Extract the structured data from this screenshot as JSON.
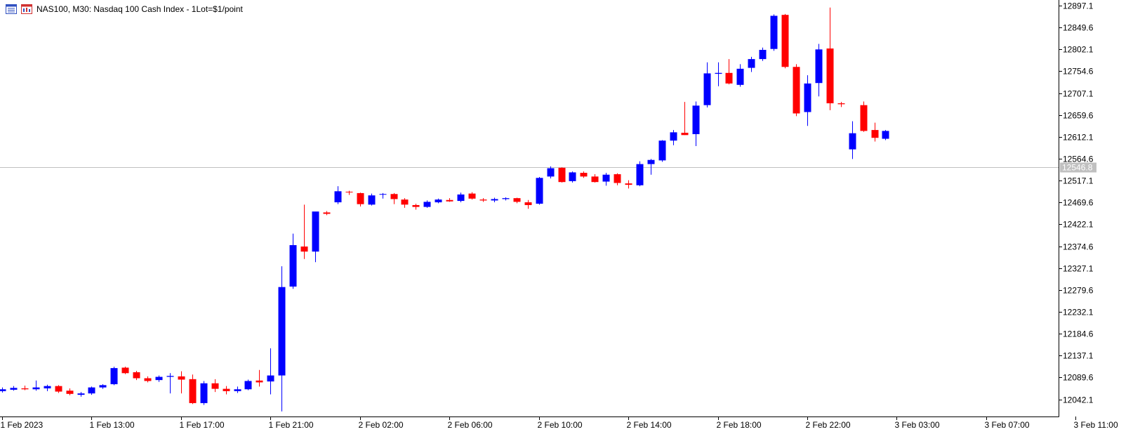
{
  "header": {
    "title": "NAS100, M30:  Nasdaq 100 Cash Index - 1Lot=$1/point",
    "icons": [
      "chart-list-icon",
      "chart-window-icon"
    ]
  },
  "colors": {
    "bull": "#0000ff",
    "bear": "#ff0000",
    "axis": "#000000",
    "price_line": "#c0c0c0",
    "price_tag_bg": "#c0c0c0",
    "background": "#ffffff"
  },
  "chart_data": {
    "type": "candlestick",
    "title": "NAS100, M30:  Nasdaq 100 Cash Index - 1Lot=$1/point",
    "ylim": [
      12004.9,
      12909.3
    ],
    "y_ticks": [
      "12897.1",
      "12849.6",
      "12802.1",
      "12754.6",
      "12707.1",
      "12659.6",
      "12612.1",
      "12564.6",
      "12517.1",
      "12469.6",
      "12422.1",
      "12374.6",
      "12327.1",
      "12279.6",
      "12232.1",
      "12184.6",
      "12137.1",
      "12089.6",
      "12042.1"
    ],
    "x_ticks": [
      "1 Feb 2023",
      "1 Feb 13:00",
      "1 Feb 17:00",
      "1 Feb 21:00",
      "2 Feb 02:00",
      "2 Feb 06:00",
      "2 Feb 10:00",
      "2 Feb 14:00",
      "2 Feb 18:00",
      "2 Feb 22:00",
      "3 Feb 03:00",
      "3 Feb 07:00",
      "3 Feb 11:00"
    ],
    "x_tick_index": [
      0,
      8,
      16,
      24,
      32,
      40,
      48,
      56,
      64,
      72,
      80,
      88,
      96
    ],
    "current_price": 12546.8,
    "current_price_label": "12546.8",
    "grid": false,
    "candles": [
      [
        12060,
        12068,
        12057,
        12064
      ],
      [
        12063,
        12071,
        12061,
        12067
      ],
      [
        12066,
        12072,
        12062,
        12064
      ],
      [
        12064,
        12083,
        12061,
        12068
      ],
      [
        12066,
        12074,
        12060,
        12071
      ],
      [
        12071,
        12073,
        12056,
        12059
      ],
      [
        12061,
        12066,
        12051,
        12054
      ],
      [
        12052,
        12058,
        12048,
        12055
      ],
      [
        12055,
        12070,
        12052,
        12068
      ],
      [
        12068,
        12075,
        12065,
        12073
      ],
      [
        12075,
        12113,
        12073,
        12110
      ],
      [
        12111,
        12113,
        12097,
        12099
      ],
      [
        12101,
        12104,
        12084,
        12088
      ],
      [
        12088,
        12092,
        12079,
        12082
      ],
      [
        12084,
        12094,
        12080,
        12091
      ],
      [
        12091,
        12099,
        12055,
        12093
      ],
      [
        12092,
        12103,
        12055,
        12085
      ],
      [
        12086,
        12096,
        12032,
        12034
      ],
      [
        12034,
        12082,
        12030,
        12077
      ],
      [
        12077,
        12086,
        12058,
        12065
      ],
      [
        12065,
        12071,
        12053,
        12060
      ],
      [
        12060,
        12070,
        12056,
        12064
      ],
      [
        12064,
        12085,
        12062,
        12082
      ],
      [
        12083,
        12106,
        12070,
        12079
      ],
      [
        12081,
        12153,
        12053,
        12094
      ],
      [
        12094,
        12331,
        12016,
        12286
      ],
      [
        12287,
        12402,
        12282,
        12377
      ],
      [
        12374,
        12465,
        12347,
        12363
      ],
      [
        12363,
        12448,
        12340,
        12450
      ],
      [
        12448,
        12451,
        12442,
        12445
      ],
      [
        12470,
        12505,
        12466,
        12494
      ],
      [
        12493,
        12495,
        12486,
        12492
      ],
      [
        12490,
        12491,
        12461,
        12466
      ],
      [
        12465,
        12489,
        12463,
        12485
      ],
      [
        12487,
        12490,
        12478,
        12488
      ],
      [
        12488,
        12490,
        12466,
        12477
      ],
      [
        12476,
        12479,
        12458,
        12465
      ],
      [
        12464,
        12467,
        12454,
        12460
      ],
      [
        12460,
        12474,
        12458,
        12471
      ],
      [
        12470,
        12478,
        12468,
        12476
      ],
      [
        12475,
        12479,
        12471,
        12472
      ],
      [
        12473,
        12491,
        12470,
        12487
      ],
      [
        12489,
        12492,
        12476,
        12478
      ],
      [
        12476,
        12479,
        12471,
        12474
      ],
      [
        12474,
        12480,
        12470,
        12477
      ],
      [
        12477,
        12481,
        12474,
        12479
      ],
      [
        12479,
        12480,
        12468,
        12471
      ],
      [
        12470,
        12475,
        12456,
        12464
      ],
      [
        12467,
        12525,
        12465,
        12523
      ],
      [
        12526,
        12548,
        12522,
        12544
      ],
      [
        12545,
        12546,
        12513,
        12514
      ],
      [
        12516,
        12537,
        12513,
        12535
      ],
      [
        12534,
        12537,
        12523,
        12526
      ],
      [
        12526,
        12531,
        12513,
        12514
      ],
      [
        12515,
        12534,
        12506,
        12530
      ],
      [
        12531,
        12533,
        12507,
        12512
      ],
      [
        12511,
        12518,
        12500,
        12508
      ],
      [
        12507,
        12559,
        12505,
        12553
      ],
      [
        12553,
        12564,
        12530,
        12562
      ],
      [
        12561,
        12605,
        12558,
        12604
      ],
      [
        12604,
        12627,
        12594,
        12622
      ],
      [
        12621,
        12688,
        12616,
        12616
      ],
      [
        12618,
        12689,
        12592,
        12680
      ],
      [
        12681,
        12774,
        12676,
        12750
      ],
      [
        12749,
        12774,
        12722,
        12751
      ],
      [
        12751,
        12781,
        12726,
        12728
      ],
      [
        12725,
        12770,
        12721,
        12760
      ],
      [
        12762,
        12786,
        12753,
        12781
      ],
      [
        12781,
        12806,
        12777,
        12801
      ],
      [
        12803,
        12878,
        12799,
        12875
      ],
      [
        12877,
        12879,
        12761,
        12764
      ],
      [
        12764,
        12770,
        12657,
        12663
      ],
      [
        12666,
        12746,
        12636,
        12728
      ],
      [
        12729,
        12814,
        12700,
        12802
      ],
      [
        12804,
        12893,
        12670,
        12685
      ],
      [
        12685,
        12688,
        12677,
        12683
      ],
      [
        12585,
        12646,
        12564,
        12620
      ],
      [
        12681,
        12689,
        12623,
        12625
      ],
      [
        12627,
        12643,
        12602,
        12610
      ],
      [
        12608,
        12627,
        12605,
        12625
      ]
    ]
  }
}
